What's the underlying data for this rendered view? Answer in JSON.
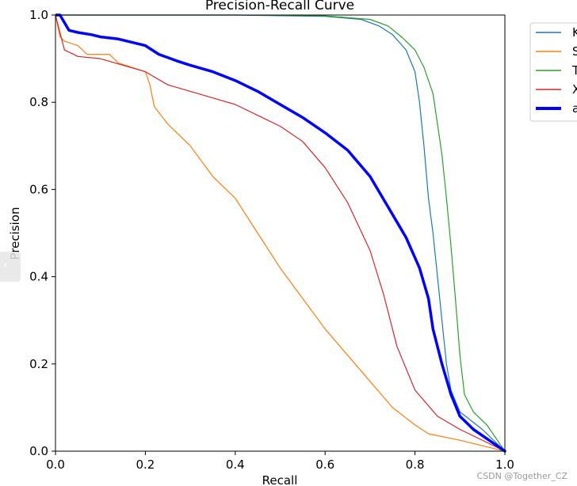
{
  "chart_data": {
    "type": "line",
    "title": "Precision-Recall Curve",
    "xlabel": "Recall",
    "ylabel": "Precision",
    "xlim": [
      0.0,
      1.0
    ],
    "ylim": [
      0.0,
      1.0
    ],
    "xticks": [
      "0.0",
      "0.2",
      "0.4",
      "0.6",
      "0.8",
      "1.0"
    ],
    "yticks": [
      "0.0",
      "0.2",
      "0.4",
      "0.6",
      "0.8",
      "1.0"
    ],
    "grid": false,
    "legend_position": "outside-top-right",
    "series": [
      {
        "name": "K",
        "color": "#1f77b4",
        "linewidth": 1.2,
        "points": [
          [
            0.0,
            1.0
          ],
          [
            0.4,
            1.0
          ],
          [
            0.6,
            0.997
          ],
          [
            0.68,
            0.99
          ],
          [
            0.72,
            0.975
          ],
          [
            0.75,
            0.955
          ],
          [
            0.78,
            0.92
          ],
          [
            0.8,
            0.87
          ],
          [
            0.81,
            0.8
          ],
          [
            0.82,
            0.7
          ],
          [
            0.83,
            0.58
          ],
          [
            0.84,
            0.5
          ],
          [
            0.85,
            0.4
          ],
          [
            0.86,
            0.3
          ],
          [
            0.87,
            0.2
          ],
          [
            0.88,
            0.14
          ],
          [
            0.9,
            0.09
          ],
          [
            0.95,
            0.05
          ],
          [
            1.0,
            0.0
          ]
        ]
      },
      {
        "name": "S",
        "color": "#ff7f0e",
        "linewidth": 1.2,
        "points": [
          [
            0.0,
            1.0
          ],
          [
            0.01,
            0.95
          ],
          [
            0.02,
            0.94
          ],
          [
            0.05,
            0.93
          ],
          [
            0.07,
            0.91
          ],
          [
            0.12,
            0.91
          ],
          [
            0.14,
            0.89
          ],
          [
            0.2,
            0.87
          ],
          [
            0.21,
            0.84
          ],
          [
            0.22,
            0.79
          ],
          [
            0.25,
            0.75
          ],
          [
            0.3,
            0.7
          ],
          [
            0.35,
            0.63
          ],
          [
            0.4,
            0.58
          ],
          [
            0.45,
            0.5
          ],
          [
            0.5,
            0.42
          ],
          [
            0.55,
            0.35
          ],
          [
            0.6,
            0.28
          ],
          [
            0.65,
            0.22
          ],
          [
            0.7,
            0.16
          ],
          [
            0.75,
            0.1
          ],
          [
            0.8,
            0.06
          ],
          [
            0.83,
            0.04
          ],
          [
            0.9,
            0.025
          ],
          [
            1.0,
            0.0
          ]
        ]
      },
      {
        "name": "T",
        "color": "#2ca02c",
        "linewidth": 1.2,
        "points": [
          [
            0.0,
            1.0
          ],
          [
            0.4,
            1.0
          ],
          [
            0.6,
            0.998
          ],
          [
            0.7,
            0.99
          ],
          [
            0.74,
            0.975
          ],
          [
            0.77,
            0.95
          ],
          [
            0.8,
            0.92
          ],
          [
            0.82,
            0.88
          ],
          [
            0.84,
            0.82
          ],
          [
            0.85,
            0.75
          ],
          [
            0.86,
            0.68
          ],
          [
            0.87,
            0.58
          ],
          [
            0.88,
            0.47
          ],
          [
            0.89,
            0.35
          ],
          [
            0.9,
            0.22
          ],
          [
            0.91,
            0.13
          ],
          [
            0.93,
            0.09
          ],
          [
            0.96,
            0.06
          ],
          [
            1.0,
            0.0
          ]
        ]
      },
      {
        "name": "X",
        "color": "#d62728",
        "linewidth": 1.2,
        "points": [
          [
            0.0,
            1.0
          ],
          [
            0.02,
            0.92
          ],
          [
            0.05,
            0.905
          ],
          [
            0.1,
            0.9
          ],
          [
            0.15,
            0.885
          ],
          [
            0.2,
            0.87
          ],
          [
            0.25,
            0.84
          ],
          [
            0.3,
            0.825
          ],
          [
            0.35,
            0.81
          ],
          [
            0.4,
            0.795
          ],
          [
            0.45,
            0.77
          ],
          [
            0.5,
            0.745
          ],
          [
            0.55,
            0.71
          ],
          [
            0.6,
            0.65
          ],
          [
            0.65,
            0.57
          ],
          [
            0.7,
            0.46
          ],
          [
            0.73,
            0.36
          ],
          [
            0.76,
            0.24
          ],
          [
            0.8,
            0.14
          ],
          [
            0.85,
            0.08
          ],
          [
            0.9,
            0.05
          ],
          [
            1.0,
            0.0
          ]
        ]
      },
      {
        "name": "a",
        "color": "#0000ff",
        "linewidth": 3.5,
        "points": [
          [
            0.0,
            1.0
          ],
          [
            0.01,
            1.0
          ],
          [
            0.03,
            0.965
          ],
          [
            0.05,
            0.96
          ],
          [
            0.08,
            0.955
          ],
          [
            0.1,
            0.95
          ],
          [
            0.14,
            0.945
          ],
          [
            0.2,
            0.93
          ],
          [
            0.23,
            0.91
          ],
          [
            0.27,
            0.895
          ],
          [
            0.3,
            0.885
          ],
          [
            0.35,
            0.87
          ],
          [
            0.4,
            0.85
          ],
          [
            0.45,
            0.825
          ],
          [
            0.5,
            0.795
          ],
          [
            0.55,
            0.765
          ],
          [
            0.6,
            0.73
          ],
          [
            0.65,
            0.69
          ],
          [
            0.7,
            0.63
          ],
          [
            0.74,
            0.56
          ],
          [
            0.78,
            0.49
          ],
          [
            0.81,
            0.42
          ],
          [
            0.83,
            0.35
          ],
          [
            0.84,
            0.28
          ],
          [
            0.86,
            0.2
          ],
          [
            0.88,
            0.13
          ],
          [
            0.9,
            0.08
          ],
          [
            0.93,
            0.05
          ],
          [
            1.0,
            0.0
          ]
        ]
      }
    ]
  },
  "watermark": "CSDN @Together_CZ",
  "side_tab_glyph": "‹"
}
